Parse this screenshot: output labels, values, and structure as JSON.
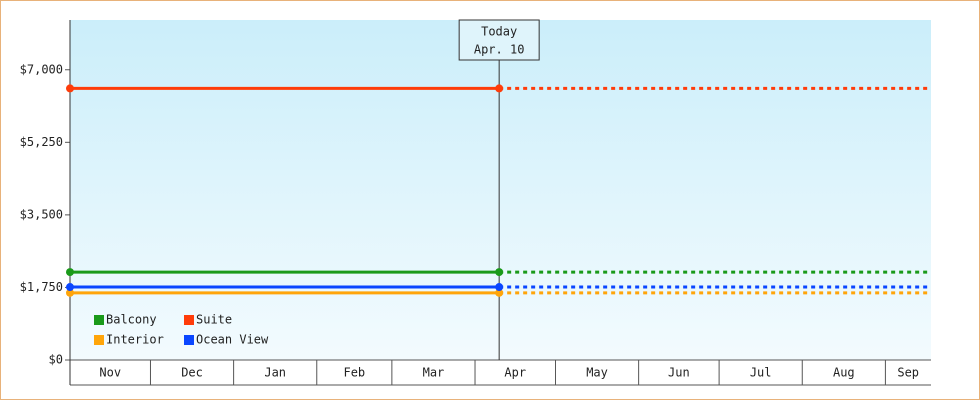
{
  "chart_data": {
    "type": "line",
    "x": [
      0,
      160
    ],
    "xlim": [
      0,
      321
    ],
    "xticks": [
      {
        "value": 0,
        "label": "Nov"
      },
      {
        "value": 30,
        "label": "Dec"
      },
      {
        "value": 61,
        "label": "Jan"
      },
      {
        "value": 92,
        "label": "Feb"
      },
      {
        "value": 120,
        "label": "Mar"
      },
      {
        "value": 151,
        "label": "Apr"
      },
      {
        "value": 181,
        "label": "May"
      },
      {
        "value": 212,
        "label": "Jun"
      },
      {
        "value": 242,
        "label": "Jul"
      },
      {
        "value": 273,
        "label": "Aug"
      },
      {
        "value": 304,
        "label": "Sep"
      }
    ],
    "ylim": [
      0,
      8200
    ],
    "yticks": [
      {
        "value": 0,
        "label": "$0"
      },
      {
        "value": 1750,
        "label": "$1,750"
      },
      {
        "value": 3500,
        "label": "$3,500"
      },
      {
        "value": 5250,
        "label": "$5,250"
      },
      {
        "value": 7000,
        "label": "$7,000"
      }
    ],
    "series": [
      {
        "name": "Balcony",
        "color": "#1a9a1a",
        "values": [
          2120,
          2120
        ]
      },
      {
        "name": "Suite",
        "color": "#ff3c0a",
        "values": [
          6550,
          6550
        ]
      },
      {
        "name": "Interior",
        "color": "#ffa50a",
        "values": [
          1620,
          1620
        ]
      },
      {
        "name": "Ocean View",
        "color": "#0a46ff",
        "values": [
          1760,
          1760
        ]
      }
    ],
    "annotation": {
      "x": 160,
      "lines": [
        "Today",
        "Apr. 10"
      ]
    },
    "legend": "lower left"
  }
}
